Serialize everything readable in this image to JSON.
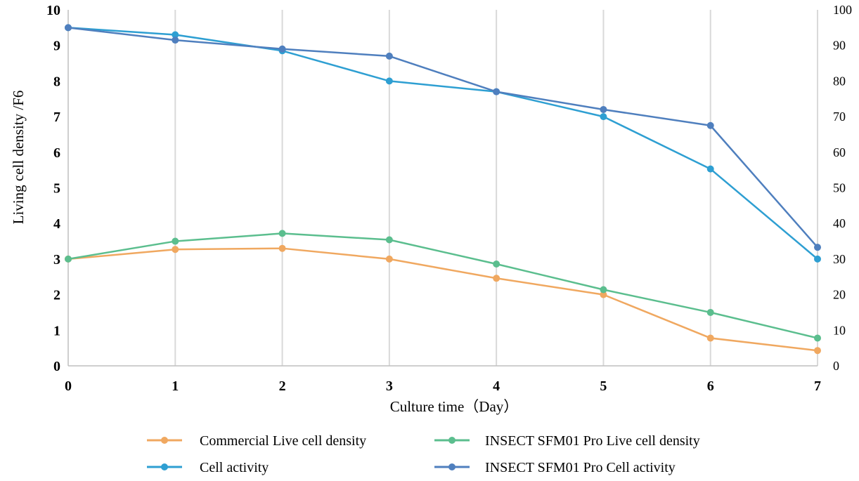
{
  "chart_data": {
    "type": "line",
    "title": "",
    "xlabel": "Culture time（Day）",
    "ylabel": "Living cell density /F6",
    "y2label": "",
    "x": [
      0,
      1,
      2,
      3,
      4,
      5,
      6,
      7
    ],
    "xlim": [
      0,
      7
    ],
    "ylim": [
      0,
      10
    ],
    "y2lim": [
      0,
      100
    ],
    "x_ticks": [
      "0",
      "1",
      "2",
      "3",
      "4",
      "5",
      "6",
      "7"
    ],
    "y_ticks": [
      "0",
      "1",
      "2",
      "3",
      "4",
      "5",
      "6",
      "7",
      "8",
      "9",
      "10"
    ],
    "y2_ticks": [
      "0",
      "10",
      "20",
      "30",
      "40",
      "50",
      "60",
      "70",
      "80",
      "90",
      "100"
    ],
    "grid": "vertical",
    "legend_position": "bottom",
    "series": [
      {
        "name": "Commercial Live cell density",
        "axis": "left",
        "color": "#F0A860",
        "values": [
          3.0,
          3.27,
          3.3,
          3.0,
          2.46,
          2.0,
          0.78,
          0.43
        ]
      },
      {
        "name": "INSECT SFM01 Pro Live cell density",
        "axis": "left",
        "color": "#5BBE8E",
        "values": [
          3.0,
          3.5,
          3.72,
          3.54,
          2.86,
          2.14,
          1.5,
          0.78
        ]
      },
      {
        "name": "Cell activity",
        "axis": "right",
        "color": "#2E9FD2",
        "values": [
          95,
          93,
          88.5,
          80,
          77,
          70,
          55.3,
          30
        ]
      },
      {
        "name": "INSECT SFM01 Pro Cell activity",
        "axis": "right",
        "color": "#4F7FBE",
        "values": [
          95,
          91.5,
          89,
          87,
          77,
          72,
          67.5,
          33.3
        ]
      }
    ]
  }
}
